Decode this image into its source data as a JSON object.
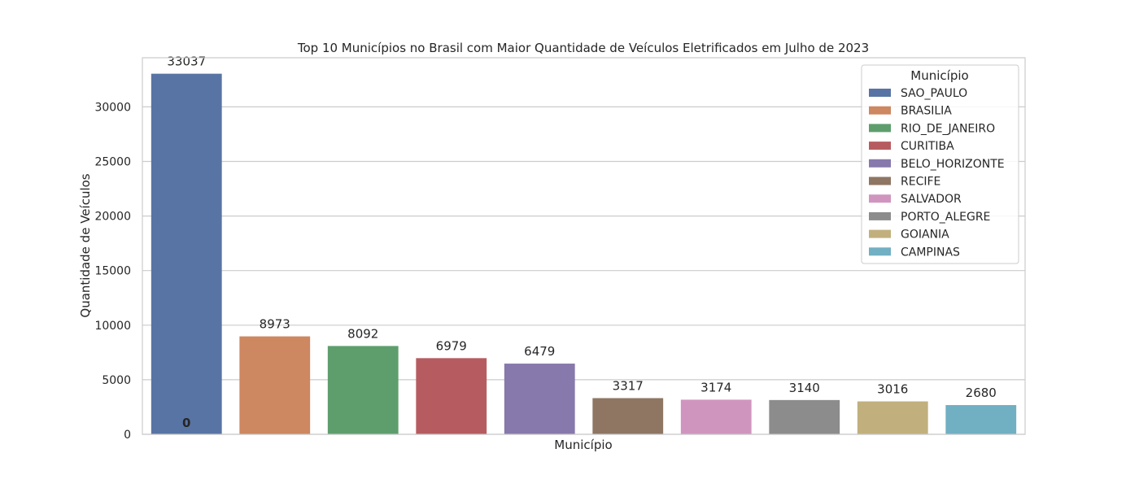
{
  "chart_data": {
    "type": "bar",
    "title": "Top 10 Municípios no Brasil com Maior Quantidade de Veículos Eletrificados em Julho de 2023",
    "xlabel": "Município",
    "ylabel": "Quantidade de Veículos",
    "categories": [
      "SAO_PAULO",
      "BRASILIA",
      "RIO_DE_JANEIRO",
      "CURITIBA",
      "BELO_HORIZONTE",
      "RECIFE",
      "SALVADOR",
      "PORTO_ALEGRE",
      "GOIANIA",
      "CAMPINAS"
    ],
    "values": [
      33037,
      8973,
      8092,
      6979,
      6479,
      3317,
      3174,
      3140,
      3016,
      2680
    ],
    "colors": [
      "#5874a4",
      "#cd8761",
      "#5e9e6d",
      "#b65c60",
      "#8779ab",
      "#8e7663",
      "#d095bf",
      "#8c8c8c",
      "#c1b07d",
      "#71afc3"
    ],
    "ylim": [
      0,
      34500
    ],
    "yticks": [
      0,
      5000,
      10000,
      15000,
      20000,
      25000,
      30000
    ],
    "grid": true,
    "legend": {
      "title": "Município",
      "placement": "top-right"
    },
    "annotations": [
      {
        "category": "SAO_PAULO",
        "text": "0"
      }
    ]
  }
}
